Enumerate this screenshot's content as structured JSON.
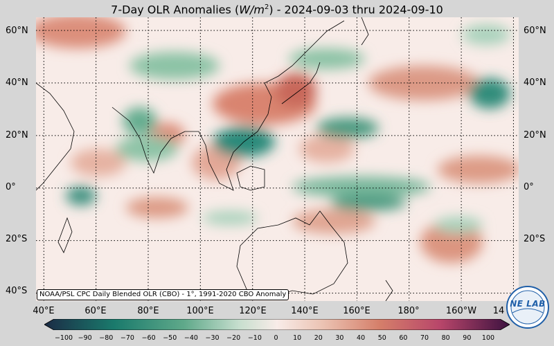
{
  "title": {
    "prefix": "7-Day OLR Anomalies (",
    "unit_base": "W/m",
    "unit_exp": "2",
    "suffix": ") - 2024-09-03 thru 2024-09-10"
  },
  "map": {
    "lat_labels": [
      "60°N",
      "40°N",
      "20°N",
      "0°",
      "20°S",
      "40°S"
    ],
    "lon_labels": [
      "40°E",
      "60°E",
      "80°E",
      "100°E",
      "120°E",
      "140°E",
      "160°E",
      "180°",
      "160°W",
      "14"
    ],
    "credit": "NOAA/PSL CPC Daily Blended OLR (CBO) - 1°, 1991-2020 CBO Anomaly",
    "lat_range": [
      -43,
      65
    ],
    "lon_range": [
      37,
      222
    ],
    "gridlines": "dotted"
  },
  "colorbar": {
    "ticks": [
      "−100",
      "−90",
      "−80",
      "−70",
      "−60",
      "−50",
      "−40",
      "−30",
      "−20",
      "−10",
      "0",
      "10",
      "20",
      "30",
      "40",
      "50",
      "60",
      "70",
      "80",
      "90",
      "100"
    ],
    "range": [
      -100,
      100
    ],
    "colors": {
      "min": "#1b2b45",
      "neg_strong": "#1a7a6c",
      "neg_mid": "#5fa98a",
      "neg_light": "#c8dfcf",
      "neutral": "#f8ece8",
      "pos_light": "#ebc2b2",
      "pos_mid": "#d57f6a",
      "pos_strong": "#b8466a",
      "max": "#3d1240"
    }
  },
  "logo": {
    "text": "NE LAB"
  }
}
